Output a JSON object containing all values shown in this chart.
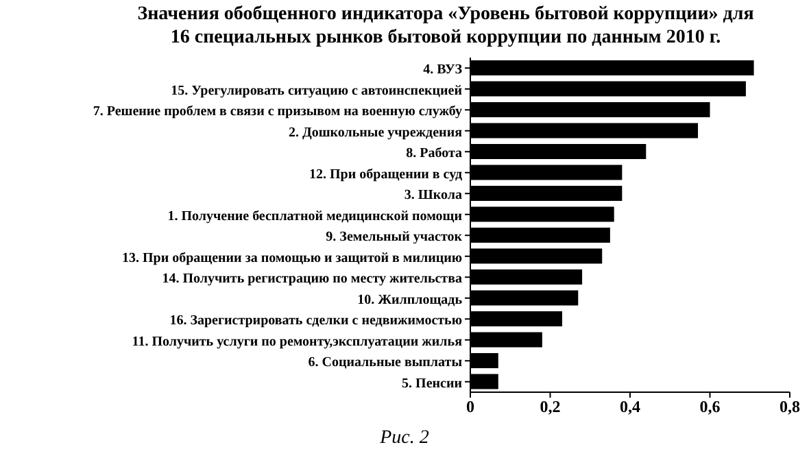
{
  "chart_data": {
    "type": "bar",
    "orientation": "horizontal",
    "title": "Значения обобщенного индикатора «Уровень бытовой коррупции» для 16 специальных рынков бытовой коррупции по данным 2010 г.",
    "categories": [
      "4. ВУЗ",
      "15. Урегулировать ситуацию с автоинспекцией",
      "7. Решение проблем в связи с призывом на военную службу",
      "2. Дошкольные учреждения",
      "8. Работа",
      "12. При обращении в суд",
      "3. Школа",
      "1. Получение бесплатной медицинской помощи",
      "9. Земельный участок",
      "13. При обращении за помощью и защитой в милицию",
      "14. Получить регистрацию по месту жительства",
      "10. Жилплощадь",
      "16. Зарегистрировать сделки с недвижимостью",
      "11. Получить услуги по ремонту,эксплуатации жилья",
      "6. Социальные выплаты",
      "5. Пенсии"
    ],
    "values": [
      0.71,
      0.69,
      0.6,
      0.57,
      0.44,
      0.38,
      0.38,
      0.36,
      0.35,
      0.33,
      0.28,
      0.27,
      0.23,
      0.18,
      0.07,
      0.07
    ],
    "color": "#000000",
    "xlim": [
      0,
      0.8
    ],
    "xticks": [
      0,
      {
        "value": 0.2,
        "label": "0,2"
      },
      {
        "value": 0.4,
        "label": "0,4"
      },
      {
        "value": 0.6,
        "label": "0,6"
      },
      {
        "value": 0.8,
        "label": "0,8"
      }
    ],
    "annotations": [
      "Рис. 2"
    ],
    "grid": false,
    "legend": false
  }
}
